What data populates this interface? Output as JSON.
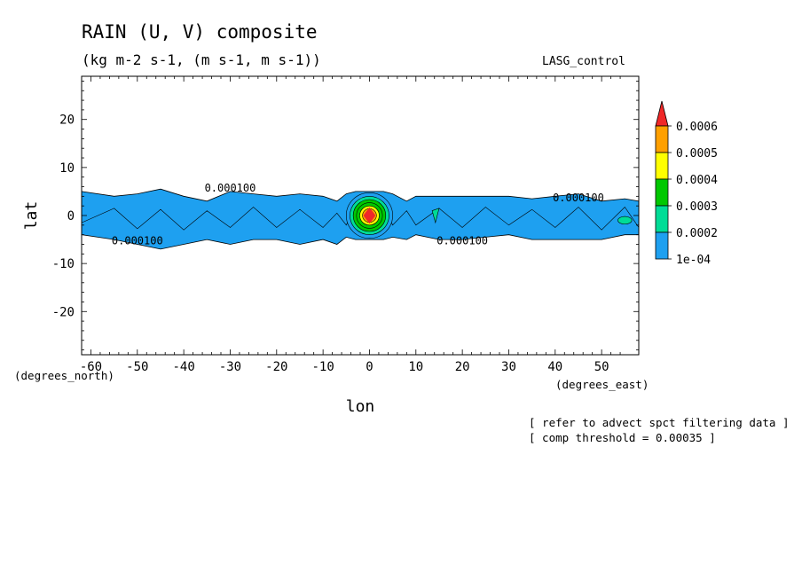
{
  "header": {
    "title": "RAIN (U, V) composite",
    "subtitle": "(kg m-2 s-1, (m s-1, m s-1))",
    "dataset": "LASG_control"
  },
  "notes": {
    "line1": "[ refer to advect spct filtering data ]",
    "line2": "[ comp threshold = 0.00035 ]"
  },
  "colors": {
    "c1": "#1ea0f0",
    "c2": "#00dc96",
    "c3": "#00c800",
    "c4": "#ffff00",
    "c5": "#ffa000",
    "c6": "#f02828"
  },
  "chart_data": {
    "type": "heatmap",
    "title": "RAIN (U, V) composite",
    "subtitle": "(kg m-2 s-1, (m s-1, m s-1))",
    "xlabel": "lon",
    "ylabel": "lat",
    "x_units": "(degrees_east)",
    "y_units": "(degrees_north)",
    "xlim": [
      -62,
      58
    ],
    "ylim": [
      -29,
      29
    ],
    "x_ticks": [
      -60,
      -50,
      -40,
      -30,
      -20,
      -10,
      0,
      10,
      20,
      30,
      40,
      50
    ],
    "y_ticks": [
      20,
      10,
      0,
      -10,
      -20
    ],
    "grid": false,
    "legend_position": "right",
    "colorbar_labels": [
      "0.0006",
      "0.0005",
      "0.0004",
      "0.0003",
      "0.0002",
      "1e-04"
    ],
    "contour_labels": [
      {
        "text": "0.000100",
        "lon": -30,
        "lat": 5
      },
      {
        "text": "0.000100",
        "lon": -50,
        "lat": -6
      },
      {
        "text": "0.000100",
        "lon": 20,
        "lat": -6
      },
      {
        "text": "0.000100",
        "lon": 45,
        "lat": 3
      }
    ],
    "rain_band": {
      "threshold": 0.0001,
      "lon": [
        -62,
        -55,
        -50,
        -45,
        -40,
        -35,
        -30,
        -25,
        -20,
        -15,
        -10,
        -7,
        -5,
        -3,
        0,
        3,
        5,
        8,
        10,
        15,
        20,
        25,
        30,
        35,
        40,
        45,
        50,
        55,
        58
      ],
      "north_lat": [
        5,
        4,
        4.5,
        5.5,
        4,
        3,
        5,
        4.5,
        4,
        4.5,
        4,
        3,
        4.5,
        5,
        5,
        5,
        4.5,
        3,
        4,
        4,
        4,
        4,
        4,
        3.5,
        4,
        4.5,
        3,
        3.5,
        3
      ],
      "south_lat": [
        -4,
        -5,
        -6,
        -7,
        -6,
        -5,
        -6,
        -5,
        -5,
        -6,
        -5,
        -6,
        -4.5,
        -5,
        -5,
        -5,
        -4.5,
        -5,
        -4,
        -5,
        -5,
        -4.5,
        -4,
        -5,
        -5,
        -5,
        -5,
        -4,
        -4
      ]
    },
    "peak": {
      "lon": 0,
      "lat": 0,
      "value": 0.0006
    }
  }
}
